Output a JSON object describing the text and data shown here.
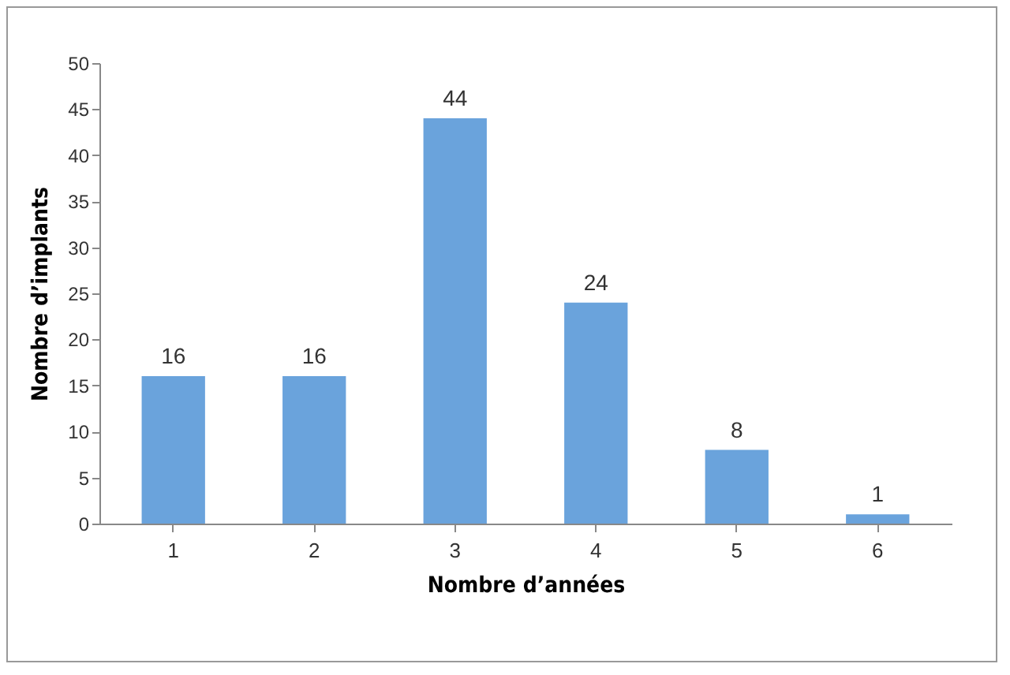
{
  "chart_data": {
    "type": "bar",
    "xlabel": "Nombre d’années",
    "ylabel": "Nombre d’implants",
    "categories": [
      "1",
      "2",
      "3",
      "4",
      "5",
      "6"
    ],
    "values": [
      16,
      16,
      44,
      24,
      8,
      1
    ],
    "color": "#6aa3dc",
    "ylim": [
      0,
      50
    ],
    "yticks": [
      0,
      5,
      10,
      15,
      20,
      25,
      30,
      35,
      40,
      45,
      50
    ],
    "grid": false,
    "data_labels": true
  }
}
